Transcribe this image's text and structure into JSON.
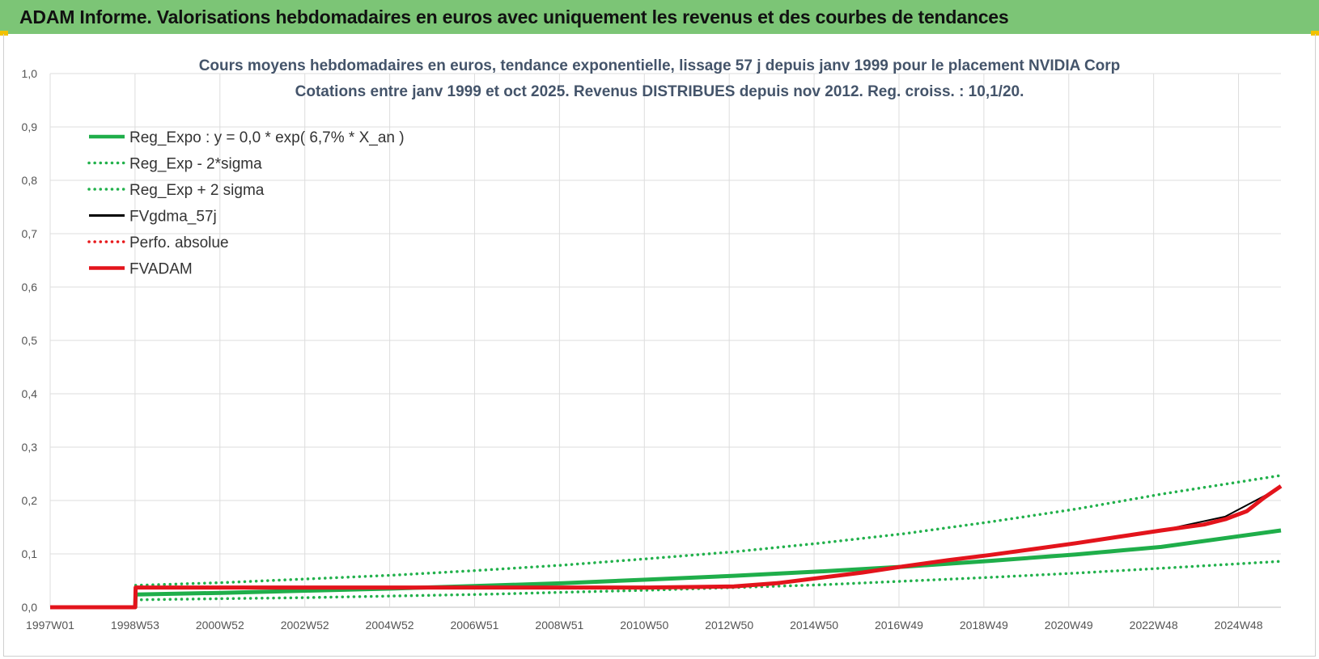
{
  "window": {
    "title": "ADAM Informe. Valorisations hebdomadaires en euros avec uniquement les revenus et des courbes de tendances"
  },
  "colors": {
    "banner": "#7cc576",
    "reg_green": "#1fae4a",
    "dotted_green": "#22b14c",
    "fvgdma_black": "#000000",
    "perfo_red": "#e8191b",
    "fvadam_red": "#e3141c",
    "grid": "#dddddd"
  },
  "chart_data": {
    "type": "line",
    "title": "Cours moyens hebdomadaires en euros, tendance exponentielle, lissage 57 j depuis janv 1999 pour le placement NVIDIA Corp",
    "subtitle": "Cotations entre janv 1999 et oct 2025. Revenus DISTRIBUES depuis nov 2012. Reg. croiss. : 10,1/20.",
    "xlabel": "",
    "ylabel": "",
    "ylim": [
      0,
      1.0
    ],
    "y_ticks": [
      "0,0",
      "0,1",
      "0,2",
      "0,3",
      "0,4",
      "0,5",
      "0,6",
      "0,7",
      "0,8",
      "0,9",
      "1,0"
    ],
    "x_ticks": [
      "1997W01",
      "1998W53",
      "2000W52",
      "2002W52",
      "2004W52",
      "2006W51",
      "2008W51",
      "2010W50",
      "2012W50",
      "2014W50",
      "2016W49",
      "2018W49",
      "2020W49",
      "2022W48",
      "2024W48"
    ],
    "x_range": [
      1997.0,
      2025.8
    ],
    "grid": true,
    "legend_position": "top-left",
    "series": [
      {
        "name": "Reg_Expo : y = 0,0 * exp( 6,7% *  X_an )",
        "style": "solid-thick",
        "color": "#1fae4a",
        "x": [
          1997.0,
          1998.99,
          1999.0,
          2001,
          2003,
          2005,
          2007,
          2009,
          2011,
          2013,
          2015,
          2017,
          2019,
          2021,
          2023,
          2025.8
        ],
        "y": [
          0.0,
          0.0,
          0.024,
          0.027,
          0.031,
          0.035,
          0.04,
          0.045,
          0.052,
          0.059,
          0.067,
          0.076,
          0.087,
          0.099,
          0.113,
          0.144
        ]
      },
      {
        "name": "Reg_Exp - 2*sigma",
        "style": "dotted",
        "color": "#22b14c",
        "x": [
          1999.0,
          2001,
          2003,
          2005,
          2007,
          2009,
          2011,
          2013,
          2015,
          2017,
          2019,
          2021,
          2023,
          2025.8
        ],
        "y": [
          0.014,
          0.016,
          0.018,
          0.021,
          0.024,
          0.028,
          0.032,
          0.037,
          0.042,
          0.049,
          0.056,
          0.064,
          0.073,
          0.086
        ]
      },
      {
        "name": "Reg_Exp + 2 sigma",
        "style": "dotted",
        "color": "#22b14c",
        "x": [
          1999.0,
          2001,
          2003,
          2005,
          2007,
          2009,
          2011,
          2013,
          2015,
          2017,
          2019,
          2021,
          2023,
          2025.8
        ],
        "y": [
          0.041,
          0.046,
          0.053,
          0.06,
          0.069,
          0.079,
          0.091,
          0.104,
          0.12,
          0.138,
          0.16,
          0.184,
          0.212,
          0.247
        ]
      },
      {
        "name": "FVgdma_57j",
        "style": "solid",
        "color": "#000000",
        "x": [
          1997.0,
          1998.99,
          1999.0,
          2001,
          2003,
          2005,
          2007,
          2009,
          2011,
          2013,
          2015,
          2017,
          2019,
          2021,
          2023,
          2024.5,
          2025.8
        ],
        "y": [
          0.0,
          0.0,
          0.036,
          0.037,
          0.037,
          0.037,
          0.037,
          0.037,
          0.037,
          0.039,
          0.055,
          0.076,
          0.097,
          0.12,
          0.144,
          0.17,
          0.225
        ]
      },
      {
        "name": "Perfo. absolue",
        "style": "dotted",
        "color": "#e8191b",
        "x": [],
        "y": []
      },
      {
        "name": "FVADAM",
        "style": "solid-thick",
        "color": "#e3141c",
        "x": [
          1997.0,
          1998.99,
          1999.0,
          2001,
          2003,
          2005,
          2007,
          2009,
          2011,
          2013,
          2014,
          2015,
          2016,
          2017,
          2018,
          2019,
          2020,
          2021,
          2022,
          2023,
          2024,
          2024.5,
          2025,
          2025.4,
          2025.8
        ],
        "y": [
          0.0,
          0.0,
          0.037,
          0.037,
          0.037,
          0.037,
          0.037,
          0.037,
          0.037,
          0.039,
          0.045,
          0.055,
          0.065,
          0.077,
          0.088,
          0.098,
          0.109,
          0.12,
          0.132,
          0.144,
          0.155,
          0.165,
          0.18,
          0.205,
          0.227
        ]
      }
    ]
  }
}
